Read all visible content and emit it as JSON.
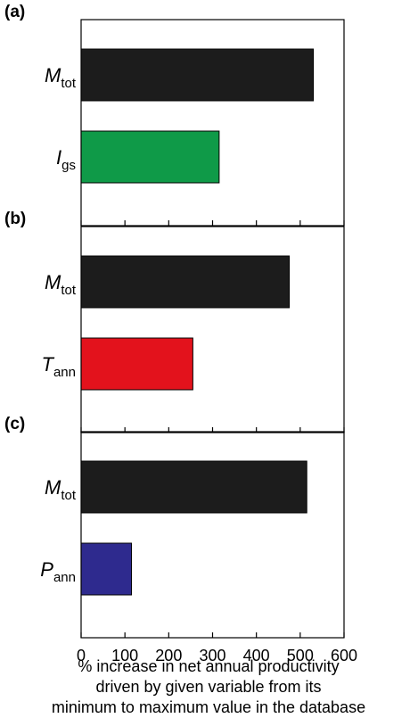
{
  "chart_data": [
    {
      "type": "bar",
      "orientation": "horizontal",
      "panel": "(a)",
      "categories": [
        {
          "main": "M",
          "sub": "tot"
        },
        {
          "main": "I",
          "sub": "gs"
        }
      ],
      "values": [
        530,
        315
      ],
      "colors": [
        "#1c1c1c",
        "#0f9a48"
      ],
      "xlim": [
        0,
        600
      ]
    },
    {
      "type": "bar",
      "orientation": "horizontal",
      "panel": "(b)",
      "categories": [
        {
          "main": "M",
          "sub": "tot"
        },
        {
          "main": "T",
          "sub": "ann"
        }
      ],
      "values": [
        475,
        255
      ],
      "colors": [
        "#1c1c1c",
        "#e3121c"
      ],
      "xlim": [
        0,
        600
      ]
    },
    {
      "type": "bar",
      "orientation": "horizontal",
      "panel": "(c)",
      "categories": [
        {
          "main": "M",
          "sub": "tot"
        },
        {
          "main": "P",
          "sub": "ann"
        }
      ],
      "values": [
        515,
        115
      ],
      "colors": [
        "#1c1c1c",
        "#2e2a8e"
      ],
      "xlim": [
        0,
        600
      ]
    }
  ],
  "x_axis": {
    "ticks": [
      0,
      100,
      200,
      300,
      400,
      500,
      600
    ],
    "label_lines": [
      "% increase in net annual productivity",
      "driven by given variable from its",
      "minimum to maximum value in the database"
    ]
  },
  "grid": false,
  "legend": "none"
}
